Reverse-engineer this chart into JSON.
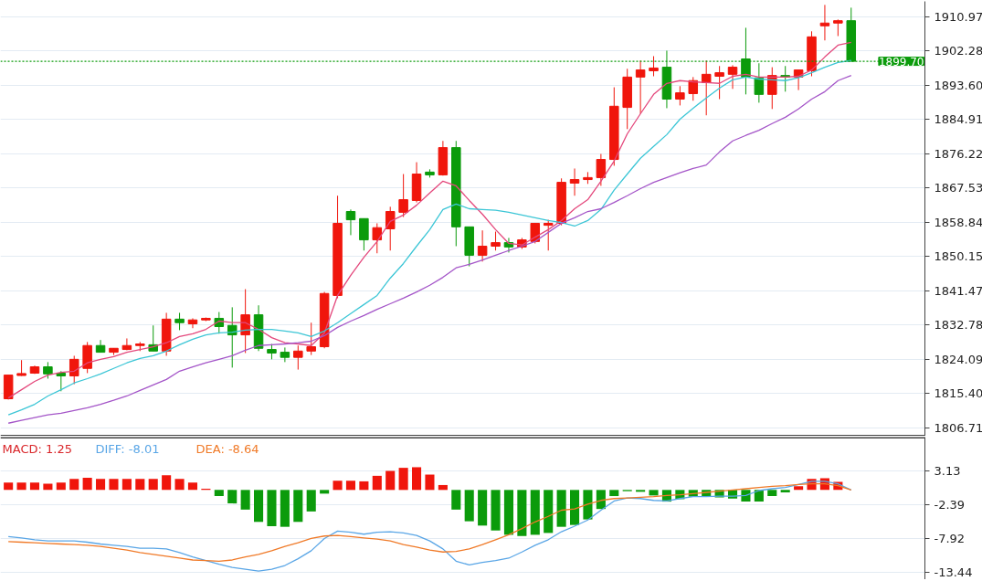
{
  "chart_data": [
    {
      "type": "candlestick",
      "categories": [
        null,
        null,
        null,
        null,
        null,
        null,
        null,
        null,
        null,
        null,
        null,
        null,
        null,
        null,
        null,
        null,
        null,
        null,
        null,
        null,
        null,
        null,
        null,
        null,
        null,
        null,
        null,
        null,
        null,
        null,
        null,
        null,
        null,
        null,
        null,
        null,
        null,
        null,
        null,
        null,
        null,
        null,
        null,
        null,
        null,
        null,
        null,
        null,
        null,
        null,
        null,
        null,
        null,
        null,
        null,
        null,
        null,
        null,
        null,
        null,
        null,
        null,
        null,
        null,
        null
      ],
      "ohlc": [
        [
          1814.1,
          1820.1,
          1813.9,
          1820.1
        ],
        [
          1820.0,
          1823.9,
          1819.9,
          1820.5
        ],
        [
          1820.6,
          1822.5,
          1820.4,
          1822.2
        ],
        [
          1822.2,
          1823.4,
          1819.2,
          1820.4
        ],
        [
          1820.6,
          1821.1,
          1816.0,
          1819.9
        ],
        [
          1819.9,
          1825.0,
          1817.8,
          1824.1
        ],
        [
          1821.8,
          1828.5,
          1820.6,
          1827.6
        ],
        [
          1827.6,
          1829.0,
          1825.9,
          1825.9
        ],
        [
          1825.9,
          1826.9,
          1825.2,
          1826.9
        ],
        [
          1826.6,
          1829.4,
          1826.4,
          1827.6
        ],
        [
          1827.6,
          1828.5,
          1826.2,
          1828.0
        ],
        [
          1827.8,
          1832.7,
          1826.2,
          1826.2
        ],
        [
          1826.2,
          1835.9,
          1825.0,
          1834.3
        ],
        [
          1834.3,
          1835.9,
          1831.5,
          1833.4
        ],
        [
          1833.1,
          1834.5,
          1832.0,
          1834.1
        ],
        [
          1834.1,
          1834.7,
          1833.8,
          1834.5
        ],
        [
          1834.5,
          1836.1,
          1830.6,
          1832.4
        ],
        [
          1832.7,
          1837.3,
          1822.0,
          1830.3
        ],
        [
          1830.3,
          1841.9,
          1825.7,
          1835.4
        ],
        [
          1835.4,
          1837.8,
          1826.2,
          1826.9
        ],
        [
          1826.6,
          1828.0,
          1824.1,
          1825.7
        ],
        [
          1825.9,
          1827.1,
          1823.4,
          1824.6
        ],
        [
          1824.6,
          1827.6,
          1821.5,
          1826.2
        ],
        [
          1826.2,
          1833.4,
          1825.2,
          1827.3
        ],
        [
          1827.3,
          1841.2,
          1826.9,
          1840.8
        ],
        [
          1840.3,
          1865.6,
          1839.6,
          1858.6
        ],
        [
          1861.6,
          1862.1,
          1855.6,
          1859.5
        ],
        [
          1859.8,
          1859.8,
          1851.7,
          1854.4
        ],
        [
          1854.4,
          1858.6,
          1851.0,
          1857.5
        ],
        [
          1857.2,
          1862.8,
          1851.7,
          1861.6
        ],
        [
          1861.4,
          1871.1,
          1860.2,
          1864.6
        ],
        [
          1864.4,
          1874.1,
          1863.9,
          1871.1
        ],
        [
          1871.6,
          1872.3,
          1870.2,
          1870.9
        ],
        [
          1870.9,
          1879.5,
          1870.7,
          1877.8
        ],
        [
          1877.8,
          1879.5,
          1852.8,
          1857.7
        ],
        [
          1857.7,
          1857.7,
          1847.7,
          1850.5
        ],
        [
          1850.5,
          1856.8,
          1848.9,
          1852.8
        ],
        [
          1852.8,
          1856.5,
          1851.7,
          1853.7
        ],
        [
          1853.7,
          1854.9,
          1851.2,
          1852.6
        ],
        [
          1852.6,
          1854.9,
          1852.1,
          1854.4
        ],
        [
          1854.0,
          1858.6,
          1853.5,
          1858.6
        ],
        [
          1858.1,
          1859.5,
          1851.7,
          1858.6
        ],
        [
          1858.6,
          1870.0,
          1858.1,
          1869.0
        ],
        [
          1868.8,
          1872.5,
          1865.6,
          1869.7
        ],
        [
          1869.7,
          1871.6,
          1868.6,
          1870.2
        ],
        [
          1870.2,
          1876.2,
          1868.1,
          1874.8
        ],
        [
          1874.8,
          1893.1,
          1873.2,
          1888.3
        ],
        [
          1888.0,
          1897.8,
          1882.5,
          1895.7
        ],
        [
          1895.7,
          1899.9,
          1886.4,
          1897.5
        ],
        [
          1897.3,
          1901.0,
          1895.9,
          1898.0
        ],
        [
          1898.2,
          1902.4,
          1887.8,
          1890.1
        ],
        [
          1890.1,
          1893.4,
          1888.5,
          1891.7
        ],
        [
          1891.5,
          1895.7,
          1889.7,
          1894.8
        ],
        [
          1894.3,
          1899.9,
          1886.0,
          1896.4
        ],
        [
          1895.9,
          1898.5,
          1890.1,
          1896.8
        ],
        [
          1896.4,
          1898.7,
          1892.7,
          1898.2
        ],
        [
          1900.3,
          1908.2,
          1891.3,
          1895.7
        ],
        [
          1895.5,
          1899.2,
          1889.2,
          1891.3
        ],
        [
          1891.3,
          1898.2,
          1887.6,
          1896.1
        ],
        [
          1896.1,
          1898.5,
          1892.0,
          1895.7
        ],
        [
          1895.7,
          1897.5,
          1892.4,
          1897.5
        ],
        [
          1897.3,
          1907.3,
          1895.9,
          1905.9
        ],
        [
          1908.7,
          1914.0,
          1905.0,
          1909.4
        ],
        [
          1909.4,
          1910.3,
          1906.1,
          1910.0
        ],
        [
          1910.0,
          1913.3,
          1899.7,
          1899.7
        ]
      ],
      "colors": [
        "#f0160c",
        "#f0160c",
        "#f0160c",
        "#0b9b0b",
        "#0b9b0b",
        "#f0160c",
        "#f0160c",
        "#0b9b0b",
        "#f0160c",
        "#f0160c",
        "#f0160c",
        "#0b9b0b",
        "#f0160c",
        "#0b9b0b",
        "#f0160c",
        "#f0160c",
        "#0b9b0b",
        "#0b9b0b",
        "#f0160c",
        "#0b9b0b",
        "#0b9b0b",
        "#0b9b0b",
        "#f0160c",
        "#f0160c",
        "#f0160c",
        "#f0160c",
        "#0b9b0b",
        "#0b9b0b",
        "#f0160c",
        "#f0160c",
        "#f0160c",
        "#f0160c",
        "#0b9b0b",
        "#f0160c",
        "#0b9b0b",
        "#0b9b0b",
        "#f0160c",
        "#f0160c",
        "#0b9b0b",
        "#f0160c",
        "#f0160c",
        "#f0160c",
        "#f0160c",
        "#f0160c",
        "#f0160c",
        "#f0160c",
        "#f0160c",
        "#f0160c",
        "#f0160c",
        "#f0160c",
        "#0b9b0b",
        "#f0160c",
        "#f0160c",
        "#f0160c",
        "#f0160c",
        "#f0160c",
        "#0b9b0b",
        "#0b9b0b",
        "#f0160c",
        "#0b9b0b",
        "#f0160c",
        "#f0160c",
        "#f0160c",
        "#f0160c",
        "#0b9b0b"
      ],
      "series": [
        {
          "type": "line",
          "color": "#e4487c",
          "values": [
            1814.3,
            1816.4,
            1818.5,
            1820.1,
            1820.8,
            1821.1,
            1823.2,
            1824.1,
            1824.8,
            1825.9,
            1826.6,
            1827.3,
            1828.3,
            1829.9,
            1830.6,
            1831.7,
            1833.8,
            1833.4,
            1833.4,
            1831.7,
            1829.6,
            1828.3,
            1828.0,
            1827.6,
            1830.8,
            1840.3,
            1845.4,
            1850.0,
            1854.0,
            1859.1,
            1860.7,
            1863.2,
            1866.3,
            1869.3,
            1868.1,
            1864.4,
            1860.9,
            1857.0,
            1853.5,
            1853.1,
            1855.1,
            1857.0,
            1859.3,
            1862.3,
            1864.6,
            1869.3,
            1874.4,
            1881.3,
            1886.4,
            1891.3,
            1894.1,
            1894.8,
            1894.5,
            1894.3,
            1894.1,
            1895.9,
            1896.4,
            1895.7,
            1895.7,
            1895.7,
            1895.9,
            1897.5,
            1900.8,
            1903.8,
            1904.5
          ]
        },
        {
          "type": "line",
          "color": "#3cc6d6",
          "values": [
            1810.0,
            1811.3,
            1812.7,
            1814.8,
            1816.4,
            1818.1,
            1819.2,
            1820.4,
            1821.8,
            1823.2,
            1824.3,
            1825.0,
            1826.2,
            1827.8,
            1829.2,
            1830.3,
            1830.8,
            1831.0,
            1831.5,
            1831.7,
            1831.7,
            1831.3,
            1830.8,
            1829.9,
            1831.3,
            1833.4,
            1835.7,
            1838.0,
            1840.3,
            1844.7,
            1848.4,
            1852.8,
            1857.0,
            1862.1,
            1863.5,
            1862.3,
            1862.1,
            1861.9,
            1861.4,
            1860.7,
            1860.0,
            1859.3,
            1858.8,
            1857.9,
            1859.3,
            1862.1,
            1867.0,
            1871.1,
            1875.1,
            1878.1,
            1881.1,
            1885.0,
            1887.8,
            1890.4,
            1892.9,
            1895.0,
            1895.7,
            1895.2,
            1895.0,
            1894.8,
            1895.5,
            1896.8,
            1898.2,
            1899.4,
            1899.9
          ]
        },
        {
          "type": "line",
          "color": "#a455c8",
          "values": [
            1807.9,
            1808.6,
            1809.3,
            1810.0,
            1810.4,
            1811.1,
            1811.8,
            1812.7,
            1813.7,
            1814.8,
            1816.2,
            1817.6,
            1819.0,
            1821.1,
            1822.2,
            1823.2,
            1824.1,
            1825.0,
            1826.4,
            1827.6,
            1827.8,
            1828.0,
            1828.3,
            1828.7,
            1830.1,
            1832.2,
            1833.8,
            1835.2,
            1836.8,
            1838.2,
            1839.6,
            1841.2,
            1842.9,
            1844.9,
            1847.3,
            1848.2,
            1849.3,
            1850.5,
            1851.7,
            1852.8,
            1854.0,
            1856.3,
            1858.6,
            1860.0,
            1861.6,
            1862.3,
            1863.9,
            1865.6,
            1867.4,
            1869.0,
            1870.2,
            1871.4,
            1872.5,
            1873.4,
            1876.7,
            1879.5,
            1880.9,
            1882.2,
            1883.9,
            1885.5,
            1887.6,
            1890.1,
            1892.0,
            1894.8,
            1896.1
          ]
        }
      ],
      "ylim": [
        1804.6,
        1914.9
      ],
      "yticks": [
        1806.71,
        {
          "value": 1815.4,
          "label": "1815.40"
        },
        1824.09,
        1832.78,
        1841.47,
        1850.15,
        1858.84,
        1867.53,
        1876.22,
        1884.91,
        {
          "value": 1893.6,
          "label": "1893.60"
        },
        1902.28,
        1910.97
      ],
      "grid": "y",
      "tick_labels": "y",
      "ref_lines": [
        {
          "axis": "y",
          "value": 1899.7,
          "label": "1899.70",
          "color": "#0b9b0b",
          "line_style": "dotted"
        }
      ]
    },
    {
      "type": "bar",
      "categories": [
        null,
        null,
        null,
        null,
        null,
        null,
        null,
        null,
        null,
        null,
        null,
        null,
        null,
        null,
        null,
        null,
        null,
        null,
        null,
        null,
        null,
        null,
        null,
        null,
        null,
        null,
        null,
        null,
        null,
        null,
        null,
        null,
        null,
        null,
        null,
        null,
        null,
        null,
        null,
        null,
        null,
        null,
        null,
        null,
        null,
        null,
        null,
        null,
        null,
        null,
        null,
        null,
        null,
        null,
        null,
        null,
        null,
        null,
        null,
        null,
        null,
        null,
        null,
        null,
        null
      ],
      "series": [
        {
          "type": "bar",
          "name": "MACD: 1.25",
          "color": "#d9262a",
          "colors": [
            "#f0160c",
            "#f0160c",
            "#f0160c",
            "#f0160c",
            "#f0160c",
            "#f0160c",
            "#f0160c",
            "#f0160c",
            "#f0160c",
            "#f0160c",
            "#f0160c",
            "#f0160c",
            "#f0160c",
            "#f0160c",
            "#f0160c",
            "#f0160c",
            "#0b9b0b",
            "#0b9b0b",
            "#0b9b0b",
            "#0b9b0b",
            "#0b9b0b",
            "#0b9b0b",
            "#0b9b0b",
            "#0b9b0b",
            "#0b9b0b",
            "#f0160c",
            "#f0160c",
            "#f0160c",
            "#f0160c",
            "#f0160c",
            "#f0160c",
            "#f0160c",
            "#f0160c",
            "#f0160c",
            "#0b9b0b",
            "#0b9b0b",
            "#0b9b0b",
            "#0b9b0b",
            "#0b9b0b",
            "#0b9b0b",
            "#0b9b0b",
            "#0b9b0b",
            "#0b9b0b",
            "#0b9b0b",
            "#0b9b0b",
            "#0b9b0b",
            "#0b9b0b",
            "#0b9b0b",
            "#0b9b0b",
            "#0b9b0b",
            "#0b9b0b",
            "#0b9b0b",
            "#0b9b0b",
            "#0b9b0b",
            "#0b9b0b",
            "#0b9b0b",
            "#0b9b0b",
            "#0b9b0b",
            "#0b9b0b",
            "#0b9b0b",
            "#f0160c",
            "#f0160c",
            "#f0160c",
            "#f0160c",
            "#f0160c"
          ],
          "values": [
            1.2,
            1.2,
            1.2,
            1.0,
            1.2,
            1.8,
            2.0,
            1.8,
            1.8,
            1.8,
            1.8,
            1.8,
            2.4,
            1.8,
            1.2,
            0.2,
            -1.0,
            -2.2,
            -3.2,
            -5.2,
            -5.9,
            -6.0,
            -5.2,
            -3.5,
            -0.6,
            1.5,
            1.5,
            1.4,
            2.3,
            3.1,
            3.6,
            3.7,
            2.5,
            0.8,
            -3.2,
            -5.1,
            -5.8,
            -6.6,
            -7.3,
            -7.5,
            -7.3,
            -7.0,
            -6.0,
            -5.7,
            -4.8,
            -3.1,
            -1.0,
            -0.2,
            -0.3,
            -0.9,
            -1.9,
            -1.5,
            -1.1,
            -1.0,
            -1.2,
            -1.4,
            -1.9,
            -1.9,
            -1.0,
            -0.4,
            0.6,
            1.8,
            1.9,
            1.3,
            0
          ]
        },
        {
          "type": "line",
          "name": "DIFF: -8.01",
          "color": "#5aa6e6",
          "values": [
            -7.6,
            -7.8,
            -8.1,
            -8.3,
            -8.3,
            -8.3,
            -8.5,
            -8.8,
            -9.0,
            -9.2,
            -9.5,
            -9.5,
            -9.6,
            -10.2,
            -10.9,
            -11.5,
            -12.1,
            -12.6,
            -12.9,
            -13.2,
            -12.9,
            -12.3,
            -11.2,
            -9.9,
            -7.9,
            -6.7,
            -6.9,
            -7.2,
            -6.9,
            -6.8,
            -7.0,
            -7.4,
            -8.3,
            -9.6,
            -11.6,
            -12.2,
            -11.8,
            -11.5,
            -11.1,
            -10.1,
            -9.0,
            -8.1,
            -6.8,
            -5.9,
            -4.9,
            -3.3,
            -1.8,
            -1.3,
            -1.4,
            -1.7,
            -1.8,
            -1.4,
            -1.1,
            -1.1,
            -1.0,
            -1.0,
            -0.9,
            -0.1,
            0.2,
            0.4,
            0.9,
            1.4,
            1.4,
            1.0,
            0.0
          ]
        },
        {
          "type": "line",
          "name": "DEA: -8.64",
          "color": "#f07a28",
          "values": [
            -8.4,
            -8.5,
            -8.6,
            -8.7,
            -8.8,
            -8.9,
            -9.0,
            -9.2,
            -9.5,
            -9.8,
            -10.2,
            -10.5,
            -10.8,
            -11.1,
            -11.4,
            -11.5,
            -11.6,
            -11.4,
            -10.9,
            -10.5,
            -9.9,
            -9.2,
            -8.6,
            -7.9,
            -7.5,
            -7.4,
            -7.6,
            -7.8,
            -8.0,
            -8.3,
            -8.9,
            -9.3,
            -9.8,
            -10.1,
            -10.0,
            -9.6,
            -8.9,
            -8.1,
            -7.3,
            -6.3,
            -5.2,
            -4.3,
            -3.3,
            -3.1,
            -2.3,
            -1.7,
            -1.4,
            -1.3,
            -1.2,
            -1.1,
            -0.9,
            -0.8,
            -0.6,
            -0.4,
            -0.2,
            0.0,
            0.2,
            0.4,
            0.6,
            0.7,
            0.9,
            1.0,
            1.0,
            0.7,
            0.0
          ]
        }
      ],
      "ylim": [
        -14.6,
        8.6
      ],
      "yticks": [
        3.13,
        -2.39,
        -7.92,
        -13.44
      ],
      "grid": "y",
      "tick_labels": "y",
      "legend": "top left"
    }
  ]
}
